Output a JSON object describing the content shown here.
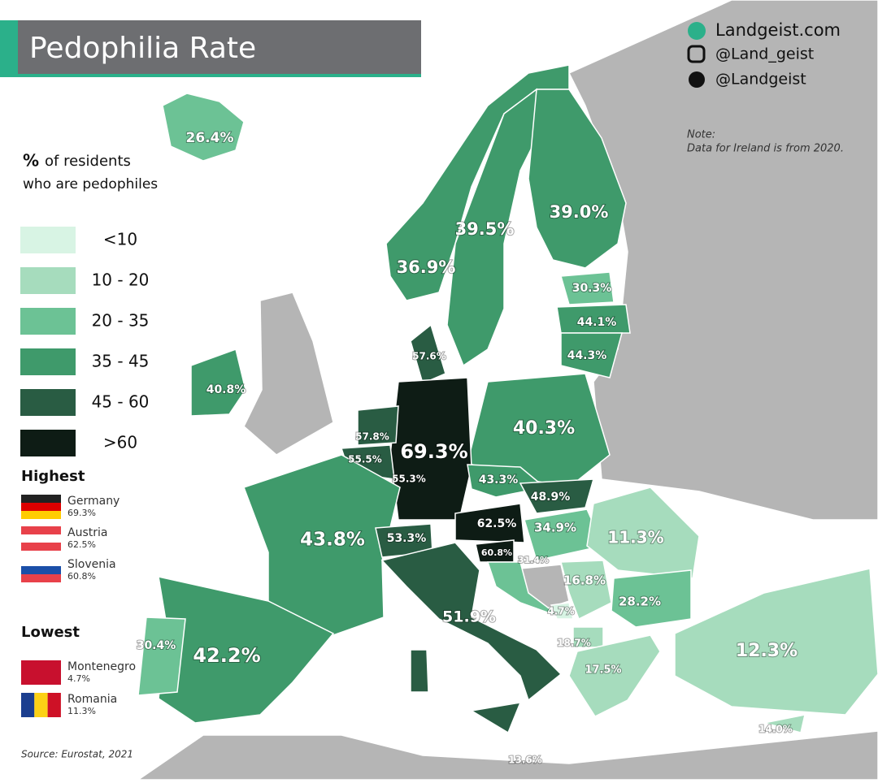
{
  "header": {
    "title": "Pedophilia Rate"
  },
  "social": [
    "Landgeist.com",
    "@Land_geist",
    "@Landgeist"
  ],
  "note": {
    "heading": "Note:",
    "text": "Data for Ireland is from 2020."
  },
  "legend": {
    "symbol": "%",
    "line1": "of  residents",
    "line2": "who are pedophiles",
    "items": [
      {
        "label": "<10",
        "color": "#d8f4e4"
      },
      {
        "label": "10 - 20",
        "color": "#a6dcbd"
      },
      {
        "label": "20 - 35",
        "color": "#6cc295"
      },
      {
        "label": "35 - 45",
        "color": "#3f9a6b"
      },
      {
        "label": "45 - 60",
        "color": "#295c43"
      },
      {
        "label": ">60",
        "color": "#0e1c15"
      }
    ]
  },
  "highest": {
    "title": "Highest",
    "entries": [
      {
        "name": "Germany",
        "value": "69.3%"
      },
      {
        "name": "Austria",
        "value": "62.5%"
      },
      {
        "name": "Slovenia",
        "value": "60.8%"
      }
    ]
  },
  "lowest": {
    "title": "Lowest",
    "entries": [
      {
        "name": "Montenegro",
        "value": "4.7%"
      },
      {
        "name": "Romania",
        "value": "11.3%"
      }
    ]
  },
  "map": {
    "labels": [
      "26.4%",
      "36.9%",
      "39.5%",
      "39.0%",
      "30.3%",
      "44.1%",
      "44.3%",
      "57.6%",
      "40.8%",
      "57.8%",
      "55.5%",
      "55.3%",
      "69.3%",
      "40.3%",
      "43.3%",
      "48.9%",
      "62.5%",
      "34.9%",
      "53.3%",
      "60.8%",
      "31.4%",
      "43.8%",
      "11.3%",
      "16.8%",
      "28.2%",
      "51.9%",
      "4.7%",
      "18.7%",
      "17.5%",
      "30.4%",
      "42.2%",
      "12.3%",
      "14.0%",
      "13.6%"
    ]
  },
  "source": "Source: Eurostat, 2021"
}
